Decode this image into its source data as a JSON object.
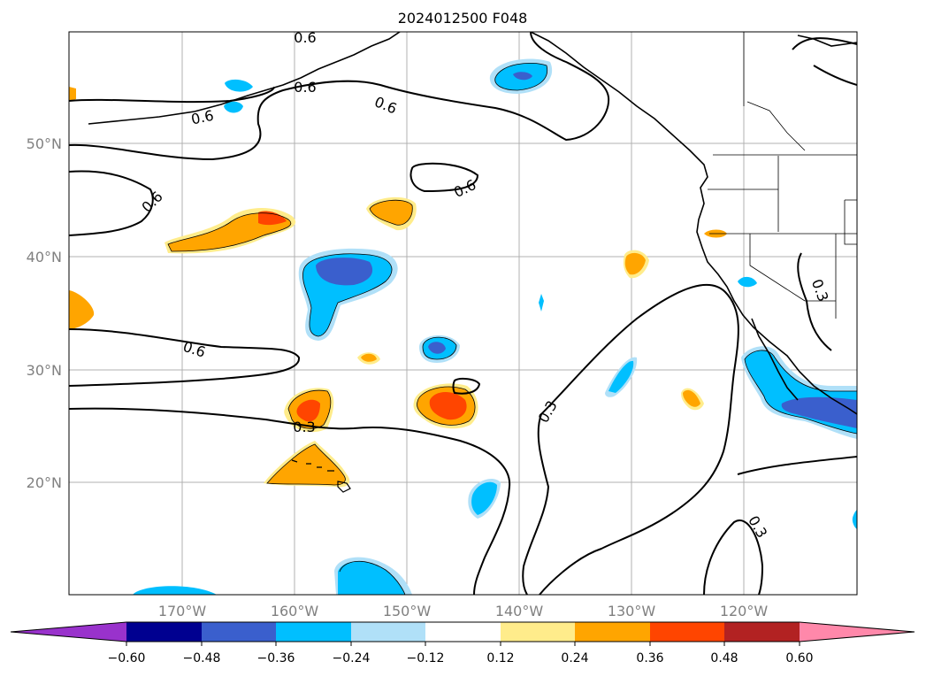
{
  "title": "2024012500 F048",
  "map": {
    "lat_labels": [
      "50°N",
      "40°N",
      "30°N",
      "20°N"
    ],
    "lon_labels": [
      "170°W",
      "160°W",
      "150°W",
      "140°W",
      "130°W",
      "120°W"
    ],
    "contour_labels": [
      "0.6",
      "0.6",
      "0.6",
      "0.6",
      "0.6",
      "0.6",
      "0.6",
      "0.3",
      "0.3",
      "0.3",
      "0.3"
    ],
    "colors": {
      "neg_060": "#9932cc",
      "neg_048": "#000090",
      "neg_036": "#3a5fcd",
      "neg_024": "#00bfff",
      "neg_012": "#b0e0f8",
      "zero": "#ffffff",
      "pos_012": "#ffec8b",
      "pos_024": "#ffa500",
      "pos_036": "#ff4500",
      "pos_048": "#b22222",
      "pos_060": "#ff88aa"
    }
  },
  "colorbar": {
    "ticks": [
      "−0.60",
      "−0.48",
      "−0.36",
      "−0.24",
      "−0.12",
      "0.12",
      "0.24",
      "0.36",
      "0.48",
      "0.60"
    ]
  }
}
